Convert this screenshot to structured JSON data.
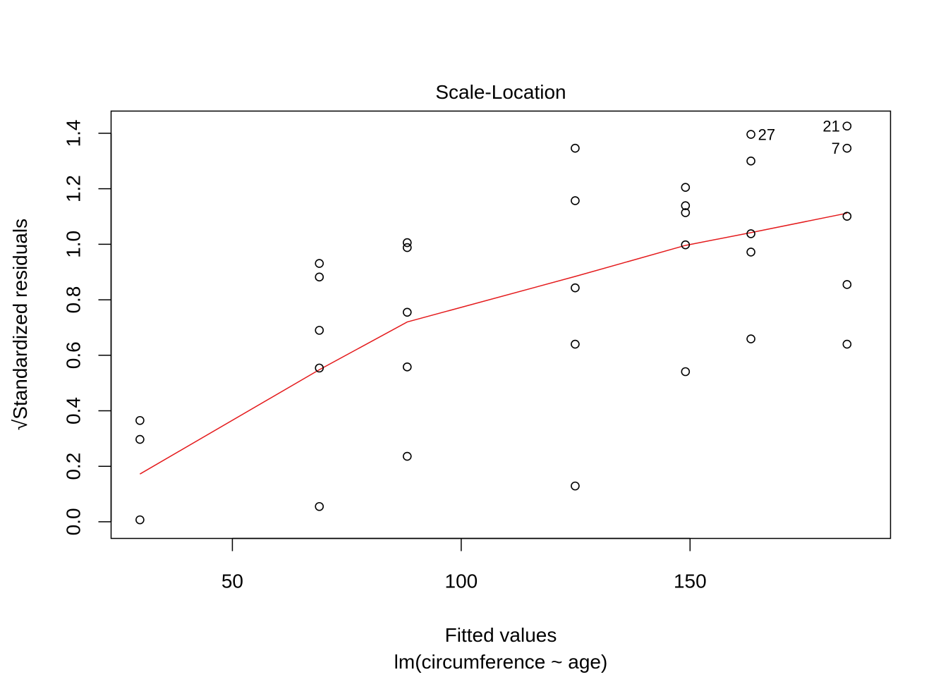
{
  "chart_data": {
    "type": "scatter",
    "title": "Scale-Location",
    "xlabel": "Fitted values",
    "xlabel_sub": "lm(circumference ~ age)",
    "ylabel": "Standardized residuals",
    "ylabel_prefix": "√",
    "xlim": [
      23.5,
      193.8
    ],
    "ylim": [
      -0.06,
      1.48
    ],
    "xticks": [
      50,
      100,
      150
    ],
    "xtick_labels": [
      "50",
      "100",
      "150"
    ],
    "yticks": [
      0.0,
      0.2,
      0.4,
      0.6,
      0.8,
      1.0,
      1.2,
      1.4
    ],
    "ytick_labels": [
      "0.0",
      "0.2",
      "0.4",
      "0.6",
      "0.8",
      "1.0",
      "1.2",
      "1.4"
    ],
    "grid": false,
    "points": [
      {
        "x": 29.8,
        "y": 0.365
      },
      {
        "x": 29.8,
        "y": 0.297
      },
      {
        "x": 29.8,
        "y": 0.007
      },
      {
        "x": 69.0,
        "y": 0.931
      },
      {
        "x": 69.0,
        "y": 0.882
      },
      {
        "x": 69.0,
        "y": 0.69
      },
      {
        "x": 69.0,
        "y": 0.554
      },
      {
        "x": 69.0,
        "y": 0.055
      },
      {
        "x": 88.2,
        "y": 1.006
      },
      {
        "x": 88.2,
        "y": 0.988
      },
      {
        "x": 88.2,
        "y": 0.755
      },
      {
        "x": 88.2,
        "y": 0.558
      },
      {
        "x": 88.2,
        "y": 0.236
      },
      {
        "x": 124.9,
        "y": 1.346
      },
      {
        "x": 124.9,
        "y": 1.157
      },
      {
        "x": 124.9,
        "y": 0.843
      },
      {
        "x": 124.9,
        "y": 0.64
      },
      {
        "x": 124.9,
        "y": 0.129
      },
      {
        "x": 149.0,
        "y": 1.205
      },
      {
        "x": 149.0,
        "y": 1.139
      },
      {
        "x": 149.0,
        "y": 1.114
      },
      {
        "x": 149.0,
        "y": 0.998
      },
      {
        "x": 149.0,
        "y": 0.541
      },
      {
        "x": 163.3,
        "y": 1.396,
        "label": "27"
      },
      {
        "x": 163.3,
        "y": 1.3
      },
      {
        "x": 163.3,
        "y": 1.038
      },
      {
        "x": 163.3,
        "y": 0.972
      },
      {
        "x": 163.3,
        "y": 0.659
      },
      {
        "x": 184.3,
        "y": 1.426,
        "label": "21"
      },
      {
        "x": 184.3,
        "y": 1.346,
        "label": "7"
      },
      {
        "x": 184.3,
        "y": 1.101
      },
      {
        "x": 184.3,
        "y": 0.855
      },
      {
        "x": 184.3,
        "y": 0.64
      }
    ],
    "smooth_line": {
      "color": "#e41a1c",
      "x": [
        29.8,
        69.0,
        88.2,
        124.9,
        149.0,
        163.3,
        184.3
      ],
      "y": [
        0.172,
        0.548,
        0.72,
        0.884,
        0.996,
        1.042,
        1.112
      ]
    }
  }
}
